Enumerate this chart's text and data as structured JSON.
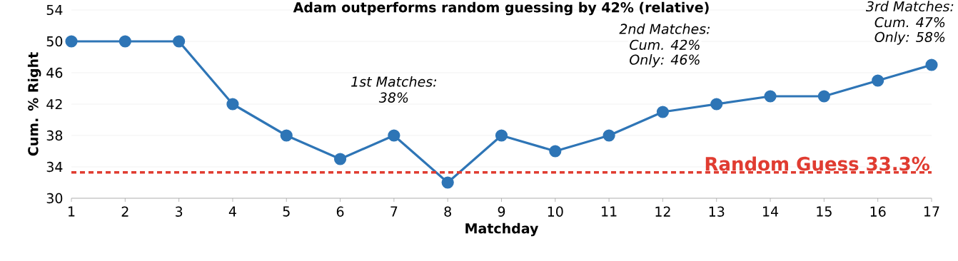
{
  "chart_data": {
    "type": "line",
    "title": "Adam outperforms random guessing by 42% (relative)",
    "xlabel": "Matchday",
    "ylabel": "Cum. % Right",
    "x": [
      1,
      2,
      3,
      4,
      5,
      6,
      7,
      8,
      9,
      10,
      11,
      12,
      13,
      14,
      15,
      16,
      17
    ],
    "series": [
      {
        "color": "#2e75b6",
        "values": [
          50,
          50,
          50,
          42,
          38,
          35,
          38,
          32,
          38,
          36,
          38,
          41,
          42,
          43,
          43,
          45,
          47
        ]
      }
    ],
    "xlim": [
      1,
      17
    ],
    "xticks": [
      1,
      2,
      3,
      4,
      5,
      6,
      7,
      8,
      9,
      10,
      11,
      12,
      13,
      14,
      15,
      16,
      17
    ],
    "ylim": [
      30,
      54
    ],
    "yticks": [
      30,
      34,
      38,
      42,
      46,
      50,
      54
    ],
    "grid": "y",
    "marker": "circle",
    "line_style": "solid",
    "ref_lines": [
      {
        "axis": "y",
        "value": 33.3,
        "label": "Random Guess 33.3%",
        "color": "#e03c31",
        "line_style": "dashed"
      }
    ],
    "annotations": [
      "1st Matches:",
      "38%",
      "2nd Matches:",
      "Cum. 42%",
      "Only: 46%",
      "3rd Matches:",
      "Cum. 47%",
      "Only: 58%"
    ]
  }
}
